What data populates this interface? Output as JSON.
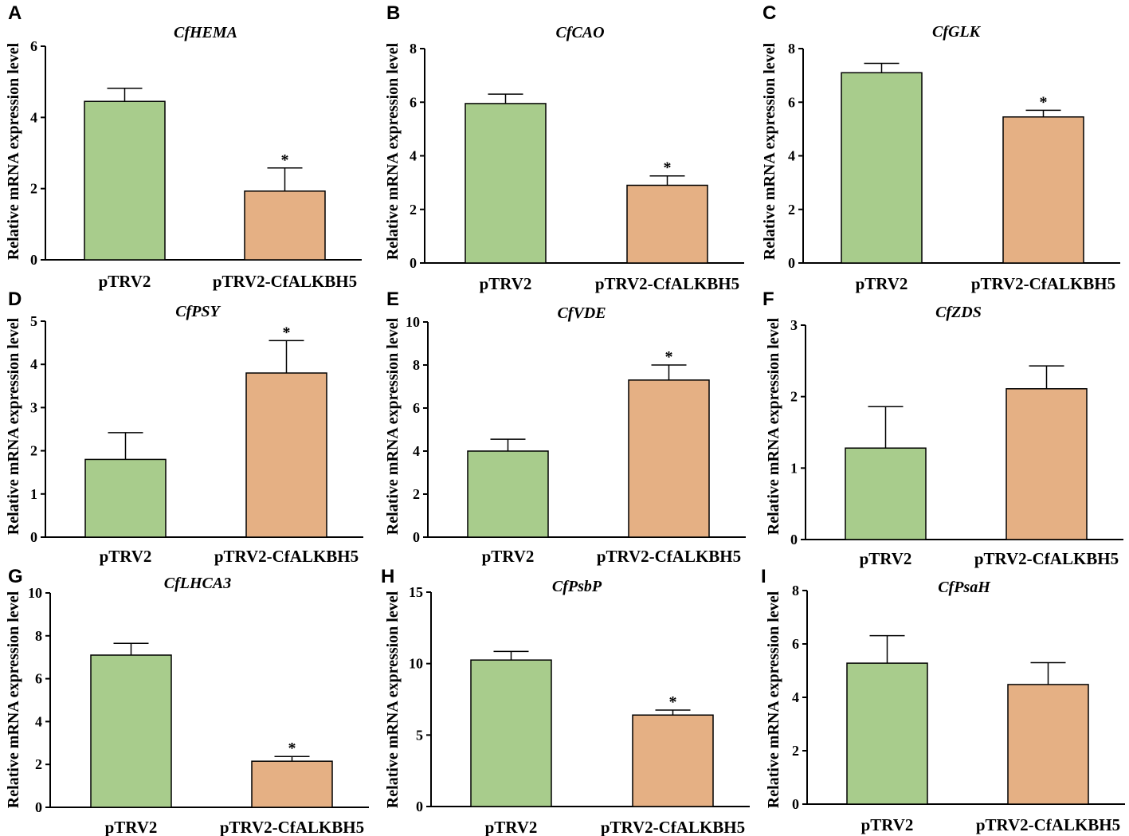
{
  "colors": {
    "control": "#a8cc8c",
    "treatment": "#e5b084",
    "axis": "#000000"
  },
  "chart_data": [
    {
      "type": "bar",
      "panel": "A",
      "title": "CfHEMA",
      "ylabel": "Relative mRNA expression level",
      "categories": [
        "pTRV2",
        "pTRV2-CfALKBH5"
      ],
      "values": [
        4.45,
        1.93
      ],
      "errors": [
        0.37,
        0.65
      ],
      "significance": [
        "",
        "*"
      ],
      "ylim": [
        0,
        6
      ],
      "yticks": [
        0,
        2,
        4,
        6
      ]
    },
    {
      "type": "bar",
      "panel": "B",
      "title": "CfCAO",
      "ylabel": "Relative mRNA expression level",
      "categories": [
        "pTRV2",
        "pTRV2-CfALKBH5"
      ],
      "values": [
        5.95,
        2.9
      ],
      "errors": [
        0.35,
        0.35
      ],
      "significance": [
        "",
        "*"
      ],
      "ylim": [
        0,
        8
      ],
      "yticks": [
        0,
        2,
        4,
        6,
        8
      ]
    },
    {
      "type": "bar",
      "panel": "C",
      "title": "CfGLK",
      "ylabel": "Relative mRNA expression level",
      "categories": [
        "pTRV2",
        "pTRV2-CfALKBH5"
      ],
      "values": [
        7.1,
        5.45
      ],
      "errors": [
        0.35,
        0.25
      ],
      "significance": [
        "",
        "*"
      ],
      "ylim": [
        0,
        8
      ],
      "yticks": [
        0,
        2,
        4,
        6,
        8
      ]
    },
    {
      "type": "bar",
      "panel": "D",
      "title": "CfPSY",
      "ylabel": "Relative mRNA expression level",
      "categories": [
        "pTRV2",
        "pTRV2-CfALKBH5"
      ],
      "values": [
        1.8,
        3.8
      ],
      "errors": [
        0.62,
        0.75
      ],
      "significance": [
        "",
        "*"
      ],
      "ylim": [
        0,
        5
      ],
      "yticks": [
        0,
        1,
        2,
        3,
        4,
        5
      ]
    },
    {
      "type": "bar",
      "panel": "E",
      "title": "CfVDE",
      "ylabel": "Relative mRNA expression level",
      "categories": [
        "pTRV2",
        "pTRV2-CfALKBH5"
      ],
      "values": [
        4.0,
        7.3
      ],
      "errors": [
        0.55,
        0.7
      ],
      "significance": [
        "",
        "*"
      ],
      "ylim": [
        0,
        10
      ],
      "yticks": [
        0,
        2,
        4,
        6,
        8,
        10
      ]
    },
    {
      "type": "bar",
      "panel": "F",
      "title": "CfZDS",
      "ylabel": "Relative mRNA expression level",
      "categories": [
        "pTRV2",
        "pTRV2-CfALKBH5"
      ],
      "values": [
        1.28,
        2.11
      ],
      "errors": [
        0.58,
        0.32
      ],
      "significance": [
        "",
        ""
      ],
      "ylim": [
        0,
        3
      ],
      "yticks": [
        0,
        1,
        2,
        3
      ]
    },
    {
      "type": "bar",
      "panel": "G",
      "title": "CfLHCA3",
      "ylabel": "Relative mRNA expression level",
      "categories": [
        "pTRV2",
        "pTRV2-CfALKBH5"
      ],
      "values": [
        7.1,
        2.15
      ],
      "errors": [
        0.55,
        0.22
      ],
      "significance": [
        "",
        "*"
      ],
      "ylim": [
        0,
        10
      ],
      "yticks": [
        0,
        2,
        4,
        6,
        8,
        10
      ]
    },
    {
      "type": "bar",
      "panel": "H",
      "title": "CfPsbP",
      "ylabel": "Relative mRNA expression level",
      "categories": [
        "pTRV2",
        "pTRV2-CfALKBH5"
      ],
      "values": [
        10.25,
        6.4
      ],
      "errors": [
        0.6,
        0.35
      ],
      "significance": [
        "",
        "*"
      ],
      "ylim": [
        0,
        15
      ],
      "yticks": [
        0,
        5,
        10,
        15
      ]
    },
    {
      "type": "bar",
      "panel": "I",
      "title": "CfPsaH",
      "ylabel": "Relative mRNA expression level",
      "categories": [
        "pTRV2",
        "pTRV2-CfALKBH5"
      ],
      "values": [
        5.28,
        4.48
      ],
      "errors": [
        1.03,
        0.82
      ],
      "significance": [
        "",
        ""
      ],
      "ylim": [
        0,
        8
      ],
      "yticks": [
        0,
        2,
        4,
        6,
        8
      ]
    }
  ]
}
